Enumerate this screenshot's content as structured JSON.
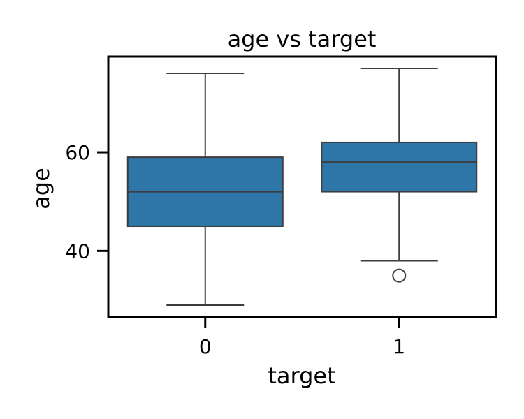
{
  "chart_data": {
    "type": "box",
    "title": "age vs target",
    "xlabel": "target",
    "ylabel": "age",
    "ylim": [
      26.6,
      79.4
    ],
    "yticks": [
      40,
      60
    ],
    "grid": false,
    "color": "#2e75a8",
    "categories": [
      "0",
      "1"
    ],
    "boxes": [
      {
        "category": "0",
        "whisker_low": 29,
        "q1": 45,
        "median": 52,
        "q3": 59,
        "whisker_high": 76,
        "outliers": []
      },
      {
        "category": "1",
        "whisker_low": 38,
        "q1": 52,
        "median": 58,
        "q3": 62,
        "whisker_high": 77,
        "outliers": [
          35
        ]
      }
    ]
  }
}
